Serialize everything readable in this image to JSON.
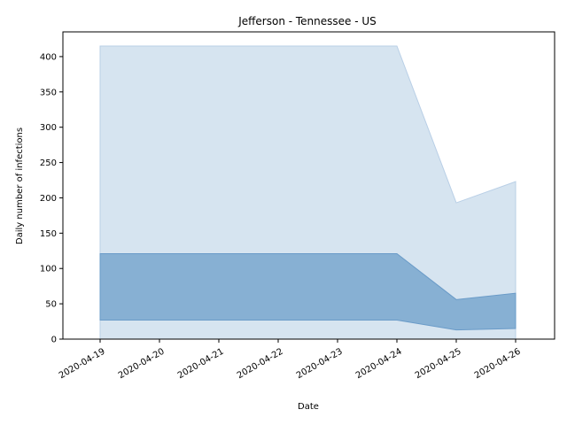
{
  "chart_data": {
    "type": "area",
    "title": "Jefferson - Tennessee - US",
    "xlabel": "Date",
    "ylabel": "Daily number of infections",
    "x": [
      "2020-04-19",
      "2020-04-20",
      "2020-04-21",
      "2020-04-22",
      "2020-04-23",
      "2020-04-24",
      "2020-04-25",
      "2020-04-26"
    ],
    "ylim": [
      0,
      435
    ],
    "yticks": [
      0,
      50,
      100,
      150,
      200,
      250,
      300,
      350,
      400
    ],
    "grid": false,
    "series": [
      {
        "lower": [
          0,
          0,
          0,
          0,
          0,
          0,
          0,
          0
        ],
        "upper": [
          415,
          415,
          415,
          415,
          415,
          415,
          193,
          223
        ],
        "color": "#d6e4f0",
        "edge": "#b9cfe6"
      },
      {
        "lower": [
          27,
          27,
          27,
          27,
          27,
          27,
          13,
          15
        ],
        "upper": [
          121,
          121,
          121,
          121,
          121,
          121,
          56,
          65
        ],
        "color": "#87b0d3",
        "edge": "#6a9bc8"
      }
    ]
  }
}
